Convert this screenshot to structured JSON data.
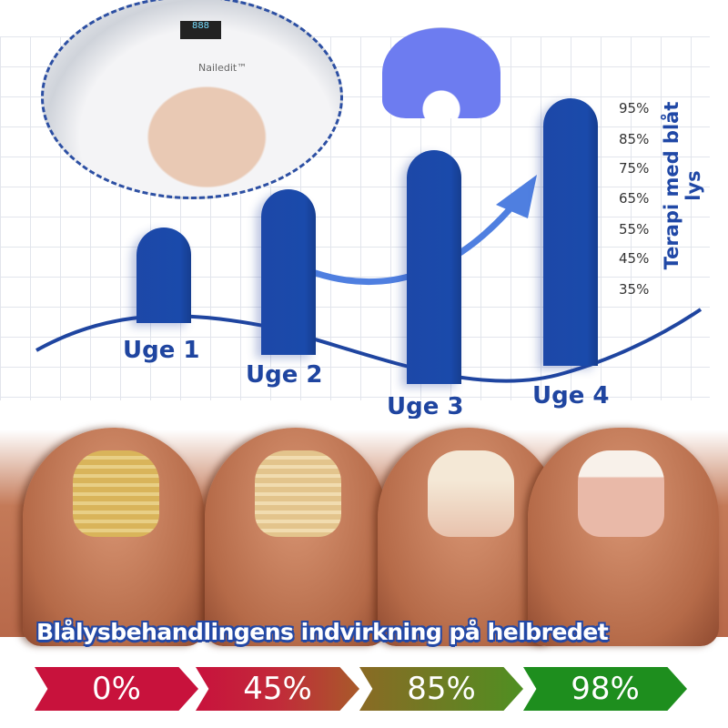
{
  "lamp": {
    "brand": "Nailedit™",
    "display": "888"
  },
  "chart_data": {
    "type": "bar",
    "categories": [
      "Uge 1",
      "Uge 2",
      "Uge 3",
      "Uge 4"
    ],
    "y_ticks": [
      "95%",
      "85%",
      "75%",
      "65%",
      "55%",
      "45%",
      "35%"
    ],
    "ylabel": "Terapi med blåt lys",
    "grid": true
  },
  "headline": "Blålysbehandlingens indvirkning på helbredet",
  "progress": [
    {
      "label": "0%",
      "color": "#c8123c"
    },
    {
      "label": "45%",
      "color": "#c22a3a"
    },
    {
      "label": "85%",
      "color": "#5a8a22"
    },
    {
      "label": "98%",
      "color": "#1e8e1e"
    }
  ]
}
